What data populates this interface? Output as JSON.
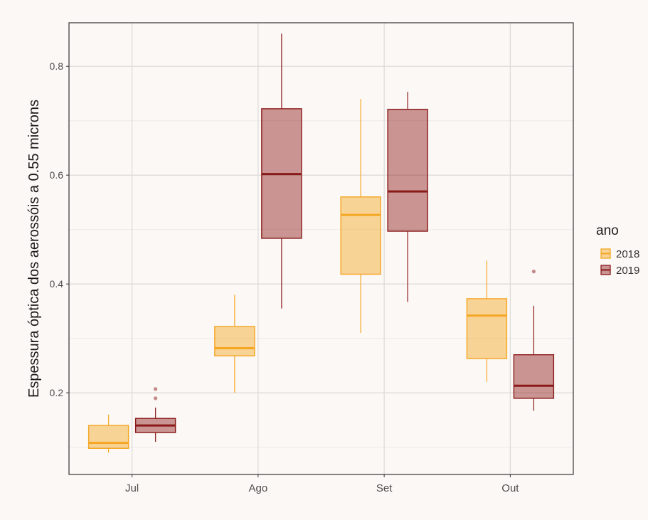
{
  "chart_data": {
    "type": "boxplot",
    "title": "",
    "xlabel": "",
    "ylabel": "Espessura óptica dos aerossóis a 0.55 microns",
    "categories": [
      "Jul",
      "Ago",
      "Set",
      "Out"
    ],
    "ylim": [
      0.05,
      0.88
    ],
    "yticks": [
      0.2,
      0.4,
      0.6,
      0.8
    ],
    "ytick_labels": [
      "0.2",
      "0.4",
      "0.6",
      "0.8"
    ],
    "grid": true,
    "legend": {
      "title": "ano",
      "placement": "right"
    },
    "series": [
      {
        "name": "2018",
        "color": "#f5a623",
        "boxes": [
          {
            "category": "Jul",
            "min": 0.09,
            "q1": 0.098,
            "median": 0.108,
            "q3": 0.14,
            "max": 0.16,
            "outliers": []
          },
          {
            "category": "Ago",
            "min": 0.2,
            "q1": 0.268,
            "median": 0.282,
            "q3": 0.322,
            "max": 0.38,
            "outliers": []
          },
          {
            "category": "Set",
            "min": 0.31,
            "q1": 0.418,
            "median": 0.527,
            "q3": 0.56,
            "max": 0.74,
            "outliers": []
          },
          {
            "category": "Out",
            "min": 0.22,
            "q1": 0.263,
            "median": 0.342,
            "q3": 0.373,
            "max": 0.443,
            "outliers": []
          }
        ]
      },
      {
        "name": "2019",
        "color": "#8b1a1a",
        "boxes": [
          {
            "category": "Jul",
            "min": 0.11,
            "q1": 0.127,
            "median": 0.14,
            "q3": 0.153,
            "max": 0.173,
            "outliers": [
              0.19,
              0.207
            ]
          },
          {
            "category": "Ago",
            "min": 0.355,
            "q1": 0.484,
            "median": 0.602,
            "q3": 0.722,
            "max": 0.86,
            "outliers": []
          },
          {
            "category": "Set",
            "min": 0.367,
            "q1": 0.497,
            "median": 0.57,
            "q3": 0.721,
            "max": 0.753,
            "outliers": []
          },
          {
            "category": "Out",
            "min": 0.167,
            "q1": 0.19,
            "median": 0.213,
            "q3": 0.27,
            "max": 0.36,
            "outliers": [
              0.423
            ]
          }
        ]
      }
    ]
  }
}
